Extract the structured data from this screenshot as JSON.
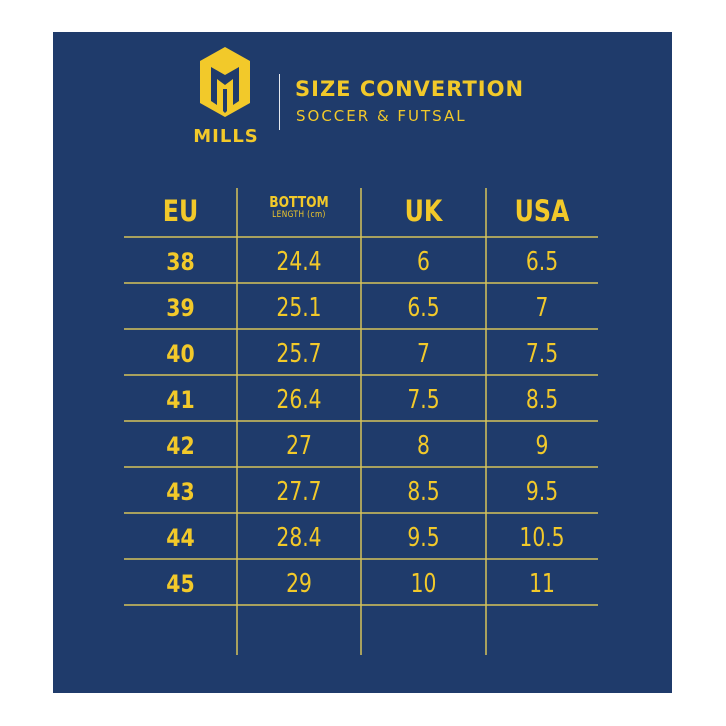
{
  "brand": {
    "logo_icon": "mills-helmet-logo-icon",
    "name": "MILLS",
    "title": "SIZE CONVERTION",
    "subtitle": "SOCCER & FUTSAL",
    "accent_color": "#f2c92a",
    "background_color": "#1f3b6b"
  },
  "table": {
    "headers": {
      "eu": "EU",
      "bottom": "BOTTOM",
      "bottom_unit": "LENGTH (cm)",
      "uk": "UK",
      "usa": "USA"
    },
    "rows": [
      {
        "eu": "38",
        "length": "24.4",
        "uk": "6",
        "usa": "6.5"
      },
      {
        "eu": "39",
        "length": "25.1",
        "uk": "6.5",
        "usa": "7"
      },
      {
        "eu": "40",
        "length": "25.7",
        "uk": "7",
        "usa": "7.5"
      },
      {
        "eu": "41",
        "length": "26.4",
        "uk": "7.5",
        "usa": "8.5"
      },
      {
        "eu": "42",
        "length": "27",
        "uk": "8",
        "usa": "9"
      },
      {
        "eu": "43",
        "length": "27.7",
        "uk": "8.5",
        "usa": "9.5"
      },
      {
        "eu": "44",
        "length": "28.4",
        "uk": "9.5",
        "usa": "10.5"
      },
      {
        "eu": "45",
        "length": "29",
        "uk": "10",
        "usa": "11"
      }
    ]
  }
}
